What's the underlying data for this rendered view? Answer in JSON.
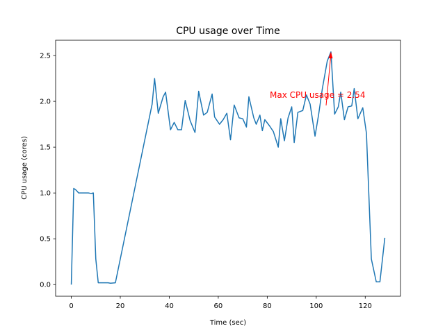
{
  "chart_data": {
    "type": "line",
    "title": "CPU usage over Time",
    "xlabel": "Time (sec)",
    "ylabel": "CPU usage (cores)",
    "x": [
      0,
      1,
      2,
      3,
      5,
      7,
      8,
      9,
      10,
      11,
      13,
      15,
      16,
      18,
      33,
      34,
      35.5,
      37.5,
      38.5,
      40.5,
      42,
      43.5,
      45,
      46.5,
      48.5,
      50.5,
      52,
      54,
      55.5,
      57.5,
      58.5,
      60.5,
      62,
      63.5,
      65,
      66.5,
      68.5,
      70,
      71.5,
      72.5,
      74.5,
      75.5,
      77,
      78,
      79,
      81,
      82.5,
      84.5,
      85.5,
      87,
      88.5,
      90,
      91,
      92.5,
      94.5,
      96,
      97.5,
      99.5,
      101,
      102.5,
      104.5,
      106,
      107.5,
      109,
      110,
      111.5,
      113,
      114.5,
      115.5,
      117,
      119,
      120.5,
      122.5,
      124.5,
      126,
      128
    ],
    "series": [
      {
        "name": "CPU usage",
        "color": "#1f77b4",
        "values": [
          0,
          1.05,
          1.03,
          1.0,
          1.0,
          1.0,
          0.995,
          1.0,
          0.28,
          0.02,
          0.02,
          0.02,
          0.015,
          0.02,
          1.97,
          2.25,
          1.87,
          2.05,
          2.1,
          1.69,
          1.77,
          1.69,
          1.69,
          2.01,
          1.79,
          1.66,
          2.11,
          1.85,
          1.88,
          2.08,
          1.83,
          1.75,
          1.8,
          1.87,
          1.58,
          1.96,
          1.82,
          1.81,
          1.72,
          2.05,
          1.82,
          1.75,
          1.85,
          1.68,
          1.8,
          1.73,
          1.67,
          1.5,
          1.81,
          1.57,
          1.82,
          1.94,
          1.55,
          1.88,
          1.9,
          2.07,
          1.97,
          1.62,
          1.86,
          2.14,
          2.44,
          2.54,
          1.86,
          1.94,
          2.1,
          1.8,
          1.94,
          1.95,
          2.14,
          1.81,
          1.93,
          1.65,
          0.28,
          0.03,
          0.03,
          0.51
        ]
      }
    ],
    "annotation": "Max CPU usage = 2.54",
    "annotation_color": "#ff0000",
    "xlim": [
      -6.4,
      134.4
    ],
    "xticks": [
      0,
      20,
      40,
      60,
      80,
      100,
      120
    ],
    "ylim": [
      -0.127,
      2.667
    ],
    "yticks": [
      {
        "value": 0,
        "label": "0.0"
      },
      0.5,
      {
        "value": 1,
        "label": "1.0"
      },
      1.5,
      {
        "value": 2,
        "label": "2.0"
      },
      2.5
    ],
    "grid": false
  }
}
